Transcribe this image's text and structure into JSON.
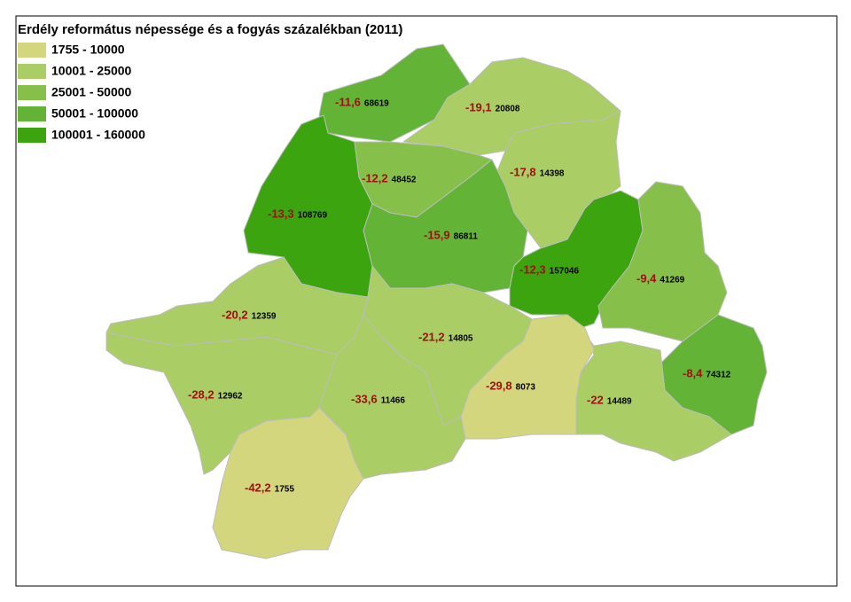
{
  "title": "Erdély református népessége és a fogyás százalékban (2011)",
  "legend": {
    "items": [
      {
        "label": "1755 - 10000",
        "color": "#d4d67d"
      },
      {
        "label": "10001 - 25000",
        "color": "#aacd65"
      },
      {
        "label": "25001 - 50000",
        "color": "#86c04a"
      },
      {
        "label": "50001 - 100000",
        "color": "#62b336"
      },
      {
        "label": "100001 - 160000",
        "color": "#3ca40f"
      }
    ]
  },
  "regions": [
    {
      "change": "-11,6",
      "population": 68619,
      "color": "#62b336"
    },
    {
      "change": "-19,1",
      "population": 20808,
      "color": "#aacd65"
    },
    {
      "change": "-13,3",
      "population": 108769,
      "color": "#3ca40f"
    },
    {
      "change": "-12,2",
      "population": 48452,
      "color": "#86c04a"
    },
    {
      "change": "-17,8",
      "population": 14398,
      "color": "#aacd65"
    },
    {
      "change": "-15,9",
      "population": 86811,
      "color": "#62b336"
    },
    {
      "change": "-12,3",
      "population": 157046,
      "color": "#3ca40f"
    },
    {
      "change": "-9,4",
      "population": 41269,
      "color": "#86c04a"
    },
    {
      "change": "-8,4",
      "population": 74312,
      "color": "#62b336"
    },
    {
      "change": "-22",
      "population": 14489,
      "color": "#aacd65"
    },
    {
      "change": "-29,8",
      "population": 8073,
      "color": "#d4d67d"
    },
    {
      "change": "-21,2",
      "population": 14805,
      "color": "#aacd65"
    },
    {
      "change": "-20,2",
      "population": 12359,
      "color": "#aacd65"
    },
    {
      "change": "-28,2",
      "population": 12962,
      "color": "#aacd65"
    },
    {
      "change": "-33,6",
      "population": 11466,
      "color": "#aacd65"
    },
    {
      "change": "-42,2",
      "population": 1755,
      "color": "#d4d67d"
    }
  ]
}
